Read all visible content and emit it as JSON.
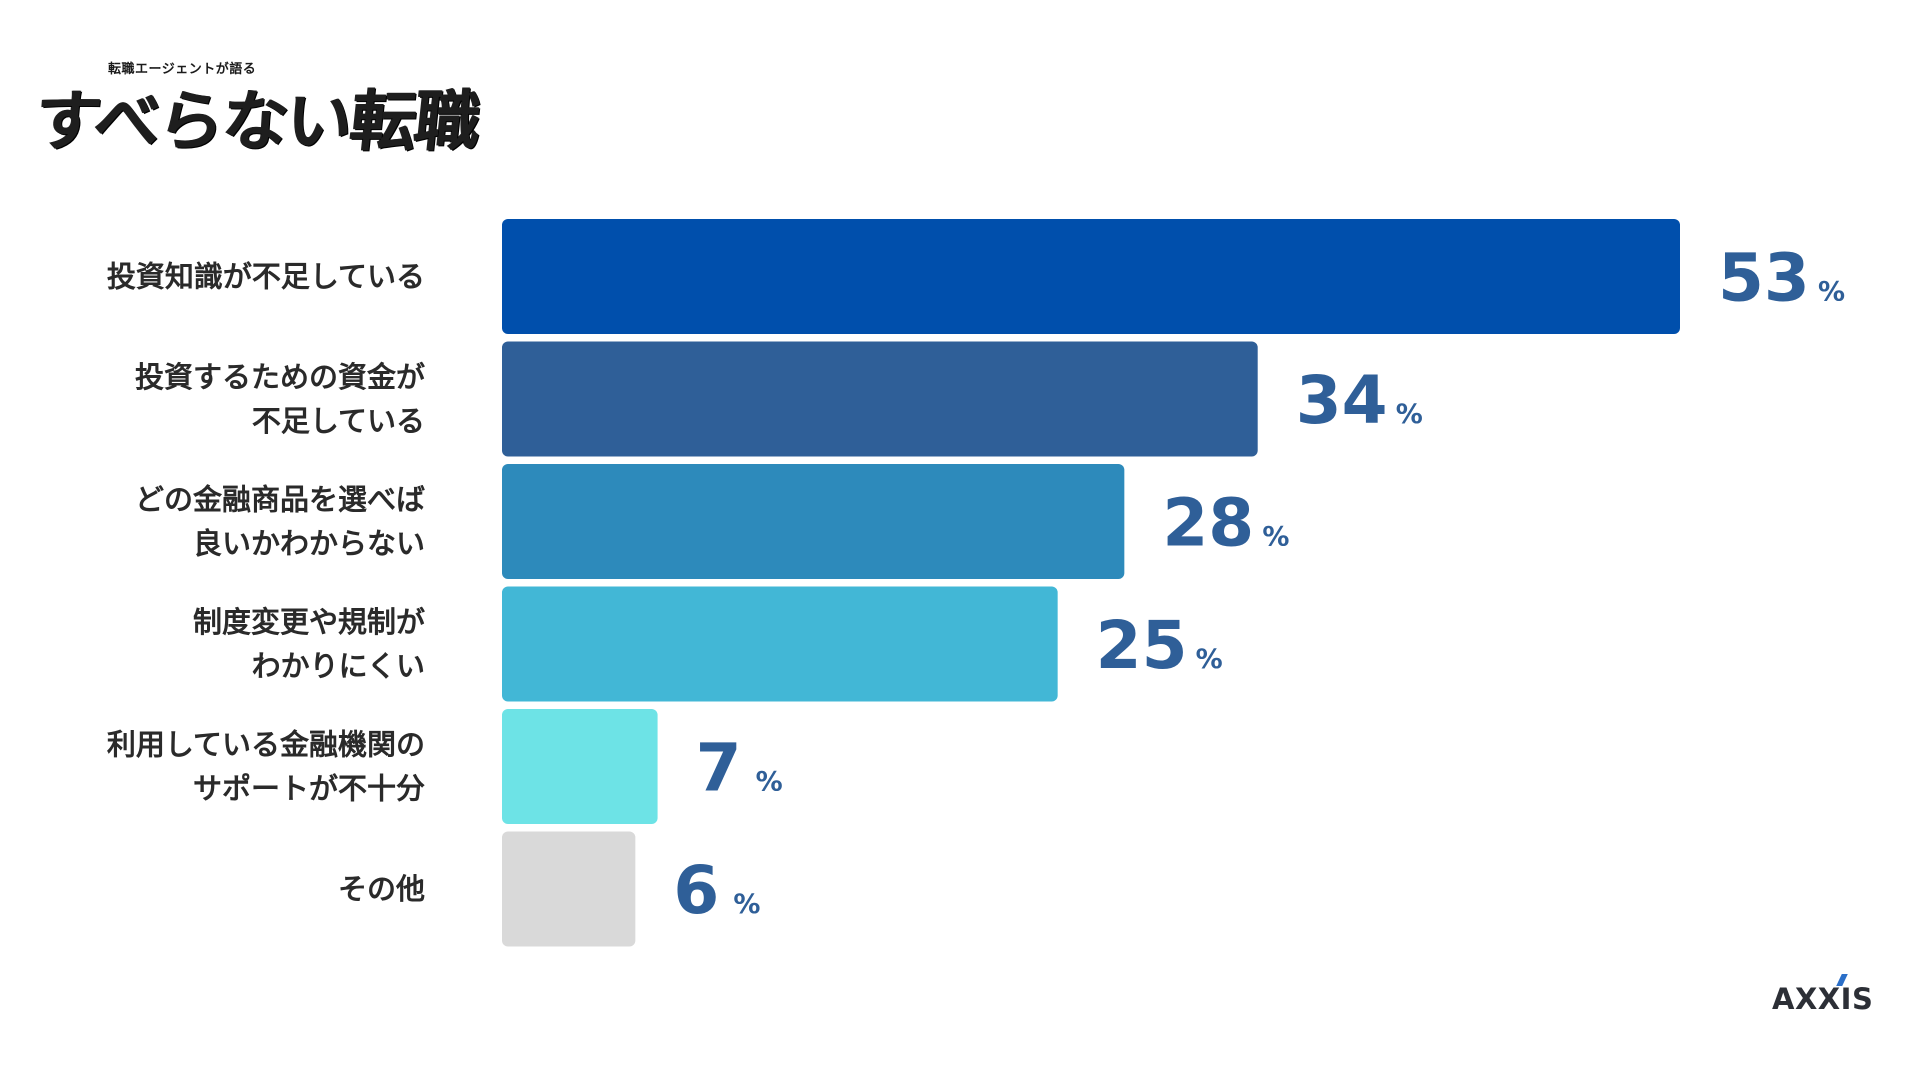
{
  "brand": {
    "small": "転職エージェントが語る",
    "big": "すべらない転職"
  },
  "footer": {
    "company": "AXXIS"
  },
  "chart_data": {
    "type": "bar",
    "orientation": "horizontal",
    "categories": [
      [
        "投資知識が不足している"
      ],
      [
        "投資するための資金が",
        "不足している"
      ],
      [
        "どの金融商品を選べば",
        "良いかわからない"
      ],
      [
        "制度変更や規制が",
        "わかりにくい"
      ],
      [
        "利用している金融機関の",
        "サポートが不十分"
      ],
      [
        "その他"
      ]
    ],
    "values": [
      53,
      34,
      28,
      25,
      7,
      6
    ],
    "value_suffix": "%",
    "bar_colors": [
      "#004fac",
      "#2f5f98",
      "#2d8abb",
      "#42b7d6",
      "#6de3e6",
      "#d9d9d9"
    ],
    "value_color": "#2f5f98",
    "xlim": [
      0,
      53
    ],
    "grid": false,
    "legend": "none"
  }
}
